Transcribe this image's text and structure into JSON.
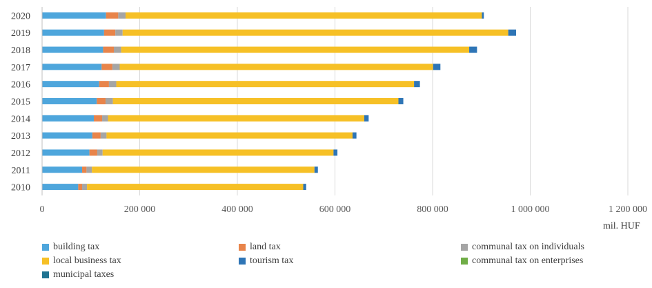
{
  "chart_data": {
    "type": "bar",
    "orientation": "horizontal",
    "stacked": true,
    "categories": [
      "2020",
      "2019",
      "2018",
      "2017",
      "2016",
      "2015",
      "2014",
      "2013",
      "2012",
      "2011",
      "2010"
    ],
    "series": [
      {
        "name": "building tax",
        "color": "#4ea6dc",
        "values": [
          131000,
          127000,
          125000,
          122000,
          117000,
          112000,
          106000,
          103000,
          97000,
          82000,
          74000
        ]
      },
      {
        "name": "land tax",
        "color": "#e8844a",
        "values": [
          25000,
          23000,
          22000,
          22000,
          20000,
          18000,
          17000,
          17000,
          16000,
          9000,
          8000
        ]
      },
      {
        "name": "communal tax on individuals",
        "color": "#a5a5a5",
        "values": [
          15000,
          15000,
          15000,
          15000,
          15000,
          15000,
          12000,
          12000,
          11000,
          11000,
          10000
        ]
      },
      {
        "name": "local business tax",
        "color": "#f6c026",
        "values": [
          730000,
          790000,
          713000,
          642000,
          610000,
          585000,
          525000,
          504000,
          473000,
          456000,
          443000
        ]
      },
      {
        "name": "tourism tax",
        "color": "#2e75b6",
        "values": [
          4000,
          16000,
          16000,
          15000,
          12000,
          10000,
          9000,
          8000,
          8000,
          7000,
          6000
        ]
      },
      {
        "name": "communal tax on enterprises",
        "color": "#70ad47",
        "values": [
          0,
          0,
          0,
          0,
          0,
          0,
          0,
          0,
          0,
          0,
          0
        ]
      },
      {
        "name": "municipal taxes",
        "color": "#1f7391",
        "values": [
          0,
          0,
          0,
          0,
          0,
          0,
          0,
          0,
          0,
          0,
          0
        ]
      }
    ],
    "xlim": [
      0,
      1200000
    ],
    "xticks": [
      0,
      200000,
      400000,
      600000,
      800000,
      1000000,
      1200000
    ],
    "xtick_labels": [
      "0",
      "200 000",
      "400 000",
      "600 000",
      "800 000",
      "1 000 000",
      "1 200 000"
    ],
    "xunit": "mil. HUF",
    "grid": "vertical",
    "legend_position": "bottom"
  }
}
